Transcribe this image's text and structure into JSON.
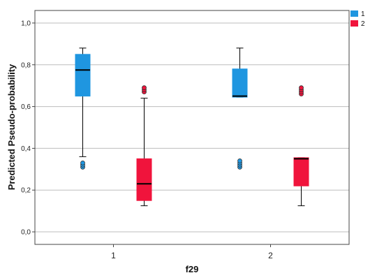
{
  "chart_data": {
    "type": "boxplot",
    "xlabel": "f29",
    "ylabel": "Predicted Pseudo-probability",
    "ylim": [
      -0.06,
      1.06
    ],
    "yticks": [
      "0,0",
      "0,2",
      "0,4",
      "0,6",
      "0,8",
      "1,0"
    ],
    "ytick_values": [
      0.0,
      0.2,
      0.4,
      0.6,
      0.8,
      1.0
    ],
    "grid": true,
    "legend_position": "top-right",
    "categories": [
      "1",
      "2"
    ],
    "series": [
      {
        "name": "1",
        "color": "#1f96e0",
        "boxes": [
          {
            "category": "1",
            "whisker_low": 0.36,
            "q1": 0.65,
            "median": 0.775,
            "q3": 0.85,
            "whisker_high": 0.88,
            "outliers": [
              0.31,
              0.32,
              0.33
            ]
          },
          {
            "category": "2",
            "whisker_low": 0.645,
            "q1": 0.645,
            "median": 0.65,
            "q3": 0.78,
            "whisker_high": 0.88,
            "outliers": [
              0.31,
              0.32,
              0.33,
              0.34
            ]
          }
        ]
      },
      {
        "name": "2",
        "color": "#f0143c",
        "boxes": [
          {
            "category": "1",
            "whisker_low": 0.125,
            "q1": 0.15,
            "median": 0.23,
            "q3": 0.35,
            "whisker_high": 0.64,
            "outliers": [
              0.67,
              0.68,
              0.69
            ]
          },
          {
            "category": "2",
            "whisker_low": 0.125,
            "q1": 0.22,
            "median": 0.35,
            "q3": 0.355,
            "whisker_high": 0.355,
            "outliers": [
              0.66,
              0.67,
              0.68,
              0.69
            ]
          }
        ]
      }
    ]
  }
}
